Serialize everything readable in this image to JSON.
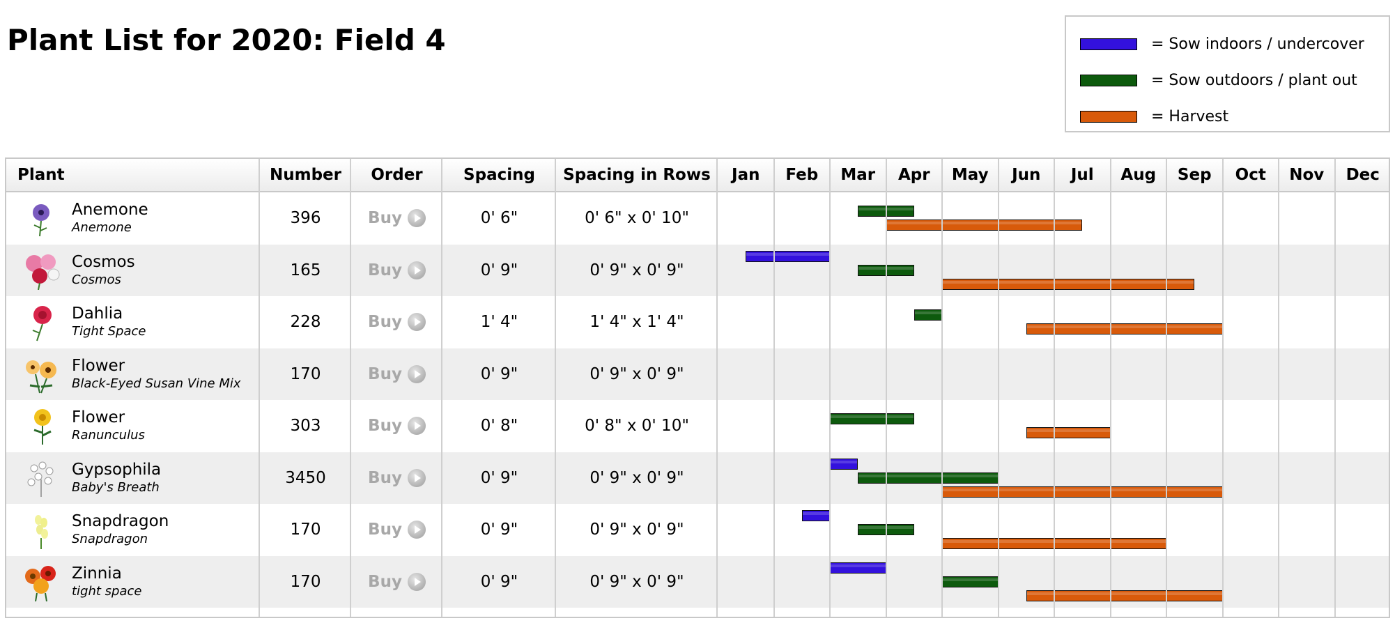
{
  "title": "Plant List for 2020: Field 4",
  "legend": [
    {
      "key": "indoor",
      "color": "#3311dd",
      "label": "= Sow indoors / undercover"
    },
    {
      "key": "outdoor",
      "color": "#0d5a0d",
      "label": "= Sow outdoors / plant out"
    },
    {
      "key": "harvest",
      "color": "#d85a0a",
      "label": "= Harvest"
    }
  ],
  "headers": {
    "plant": "Plant",
    "number": "Number",
    "order": "Order",
    "spacing": "Spacing",
    "rows": "Spacing in Rows",
    "months": [
      "Jan",
      "Feb",
      "Mar",
      "Apr",
      "May",
      "Jun",
      "Jul",
      "Aug",
      "Sep",
      "Oct",
      "Nov",
      "Dec"
    ]
  },
  "buy_label": "Buy",
  "plants": [
    {
      "name": "Anemone",
      "variety": "Anemone",
      "icon": "anemone-icon",
      "number": "396",
      "spacing": "0' 6\"",
      "rows": "0' 6\" x 0' 10\"",
      "schedule": [
        {
          "type": "outdoor",
          "start": "early Mar",
          "end": "late Apr"
        },
        {
          "type": "harvest",
          "start": "Apr",
          "end": "early Jul"
        }
      ]
    },
    {
      "name": "Cosmos",
      "variety": "Cosmos",
      "icon": "cosmos-icon",
      "number": "165",
      "spacing": "0' 9\"",
      "rows": "0' 9\" x 0' 9\"",
      "schedule": [
        {
          "type": "indoor",
          "start": "early Jan",
          "end": "Mar"
        },
        {
          "type": "outdoor",
          "start": "early Mar",
          "end": "late Apr"
        },
        {
          "type": "harvest",
          "start": "May",
          "end": "early Sep"
        }
      ]
    },
    {
      "name": "Dahlia",
      "variety": "Tight Space",
      "icon": "dahlia-icon",
      "number": "228",
      "spacing": "1' 4\"",
      "rows": "1' 4\" x 1' 4\"",
      "schedule": [
        {
          "type": "outdoor",
          "start": "early Apr",
          "end": "May"
        },
        {
          "type": "harvest",
          "start": "early Jun",
          "end": "Oct"
        }
      ]
    },
    {
      "name": "Flower",
      "variety": "Black-Eyed Susan Vine Mix",
      "icon": "black-eyed-susan-icon",
      "number": "170",
      "spacing": "0' 9\"",
      "rows": "0' 9\" x 0' 9\"",
      "schedule": []
    },
    {
      "name": "Flower",
      "variety": "Ranunculus",
      "icon": "ranunculus-icon",
      "number": "303",
      "spacing": "0' 8\"",
      "rows": "0' 8\" x 0' 10\"",
      "schedule": [
        {
          "type": "outdoor",
          "start": "Mar",
          "end": "early Apr"
        },
        {
          "type": "harvest",
          "start": "early Jun",
          "end": "Aug"
        }
      ]
    },
    {
      "name": "Gypsophila",
      "variety": "Baby's Breath",
      "icon": "gypsophila-icon",
      "number": "3450",
      "spacing": "0' 9\"",
      "rows": "0' 9\" x 0' 9\"",
      "schedule": [
        {
          "type": "indoor",
          "start": "Mar",
          "end": "late Mar"
        },
        {
          "type": "outdoor",
          "start": "early Mar",
          "end": "Jun"
        },
        {
          "type": "harvest",
          "start": "May",
          "end": "Oct"
        }
      ]
    },
    {
      "name": "Snapdragon",
      "variety": "Snapdragon",
      "icon": "snapdragon-icon",
      "number": "170",
      "spacing": "0' 9\"",
      "rows": "0' 9\" x 0' 9\"",
      "schedule": [
        {
          "type": "indoor",
          "start": "early Feb",
          "end": "Mar"
        },
        {
          "type": "outdoor",
          "start": "early Mar",
          "end": "late Apr"
        },
        {
          "type": "harvest",
          "start": "May",
          "end": "Sep"
        }
      ]
    },
    {
      "name": "Zinnia",
      "variety": "tight space",
      "icon": "zinnia-icon",
      "number": "170",
      "spacing": "0' 9\"",
      "rows": "0' 9\" x 0' 9\"",
      "schedule": [
        {
          "type": "indoor",
          "start": "Mar",
          "end": "Apr"
        },
        {
          "type": "outdoor",
          "start": "May",
          "end": "Jun"
        },
        {
          "type": "harvest",
          "start": "early Jun",
          "end": "Oct"
        }
      ]
    }
  ]
}
